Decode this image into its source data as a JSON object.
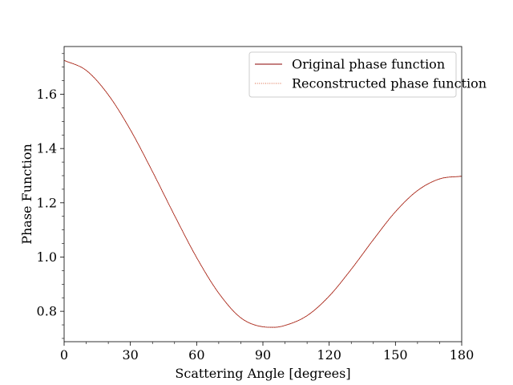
{
  "chart_data": {
    "type": "line",
    "xlabel": "Scattering Angle [degrees]",
    "ylabel": "Phase Function",
    "xlim": [
      0,
      180
    ],
    "ylim": [
      0.688,
      1.776
    ],
    "xticks": [
      0,
      30,
      60,
      90,
      120,
      150,
      180
    ],
    "xtick_labels": [
      "0",
      "30",
      "60",
      "90",
      "120",
      "150",
      "180"
    ],
    "xminor_step": 10,
    "yticks": [
      0.8,
      1.0,
      1.2,
      1.4,
      1.6
    ],
    "ytick_labels": [
      "0.8",
      "1.0",
      "1.2",
      "1.4",
      "1.6"
    ],
    "yminor_step": 0.05,
    "grid": false,
    "legend_position": "top-right",
    "series": [
      {
        "name": "Original phase function",
        "color": "#8b0000",
        "style": "solid",
        "x": [
          0,
          10,
          20,
          30,
          40,
          50,
          60,
          70,
          80,
          90,
          95,
          100,
          110,
          120,
          130,
          140,
          150,
          160,
          170,
          180
        ],
        "y": [
          1.725,
          1.688,
          1.598,
          1.469,
          1.315,
          1.153,
          0.998,
          0.867,
          0.776,
          0.743,
          0.741,
          0.748,
          0.784,
          0.856,
          0.955,
          1.064,
          1.167,
          1.245,
          1.288,
          1.298
        ]
      },
      {
        "name": "Reconstructed phase function",
        "color": "#d9603b",
        "style": "dotted",
        "x": [
          0,
          10,
          20,
          30,
          40,
          50,
          60,
          70,
          80,
          90,
          95,
          100,
          110,
          120,
          130,
          140,
          150,
          160,
          170,
          180
        ],
        "y": [
          1.725,
          1.688,
          1.598,
          1.469,
          1.315,
          1.153,
          0.998,
          0.867,
          0.776,
          0.743,
          0.741,
          0.748,
          0.784,
          0.856,
          0.955,
          1.064,
          1.167,
          1.245,
          1.288,
          1.298
        ]
      }
    ]
  }
}
